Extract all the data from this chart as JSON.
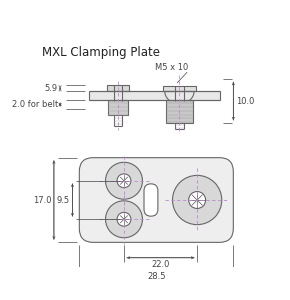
{
  "title": "MXL Clamping Plate",
  "title_fontsize": 8.5,
  "dim_fontsize": 6.0,
  "line_color": "#666666",
  "dim_color": "#444444",
  "purple_color": "#bb88cc",
  "bg_color": "#ffffff",
  "annotations": {
    "dim_5_9": "5.9",
    "dim_2_belt": "2.0 for belt",
    "dim_10": "10.0",
    "dim_M5x10": "M5 x 10",
    "dim_17": "17.0",
    "dim_9_5": "9.5",
    "dim_22": "22.0",
    "dim_28_5": "28.5"
  }
}
